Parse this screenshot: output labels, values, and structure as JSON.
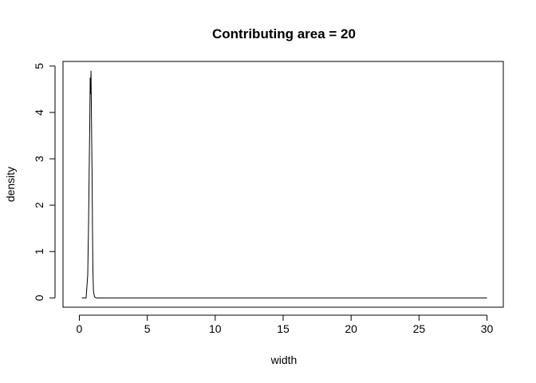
{
  "chart_data": {
    "type": "line",
    "title": "Contributing area = 20",
    "xlabel": "width",
    "ylabel": "density",
    "xlim": [
      -1.2,
      31.2
    ],
    "ylim": [
      -0.2,
      5.1
    ],
    "x_ticks": [
      0,
      5,
      10,
      15,
      20,
      25,
      30
    ],
    "x_tick_labels": [
      "0",
      "5",
      "10",
      "15",
      "20",
      "25",
      "30"
    ],
    "y_ticks": [
      0,
      1,
      2,
      3,
      4,
      5
    ],
    "y_tick_labels": [
      "0",
      "1",
      "2",
      "3",
      "4",
      "5"
    ],
    "grid": false,
    "legend": "none",
    "line_color": "#000000",
    "series": [
      {
        "x": [
          0.18,
          0.5,
          0.62,
          0.68,
          0.74,
          0.77,
          0.8,
          0.83,
          0.86,
          0.88,
          0.9,
          0.94,
          0.97,
          1.0,
          1.04,
          1.12,
          1.25,
          2.0,
          5.0,
          10.0,
          15.0,
          20.0,
          25.0,
          30.0
        ],
        "y": [
          0.0,
          0.0,
          0.5,
          1.6,
          3.1,
          3.8,
          4.75,
          4.4,
          4.9,
          4.3,
          3.7,
          2.6,
          1.5,
          0.6,
          0.15,
          0.02,
          0.0,
          0.0,
          0.0,
          0.0,
          0.0,
          0.0,
          0.0,
          0.0
        ]
      }
    ]
  }
}
